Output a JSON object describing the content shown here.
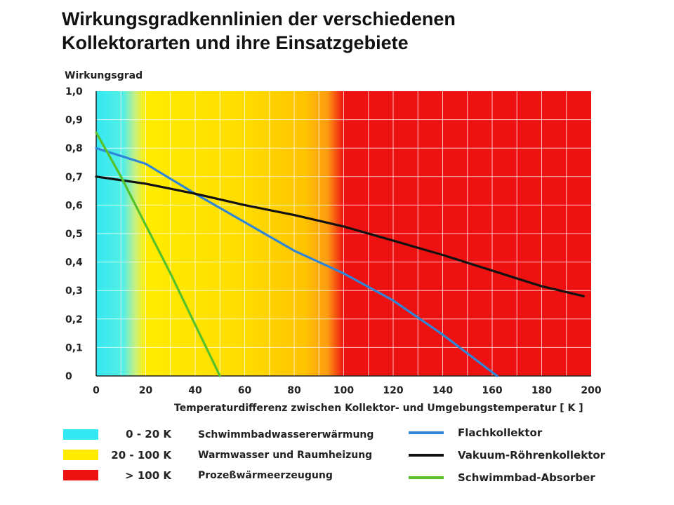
{
  "title": {
    "line1": "Wirkungsgradkennlinien der verschiedenen",
    "line2": "Kollektorarten und ihre Einsatzgebiete"
  },
  "chart_data": {
    "type": "line",
    "ylabel": "Wirkungsgrad",
    "xlabel": "Temperaturdifferenz  zwischen Kollektor- und Umgebungstemperatur [ K ]",
    "xlim": [
      0,
      200
    ],
    "ylim": [
      0,
      1.0
    ],
    "x_ticks": [
      "0",
      "20",
      "40",
      "60",
      "80",
      "100",
      "120",
      "140",
      "160",
      "180",
      "200"
    ],
    "x_tick_values": [
      0,
      20,
      40,
      60,
      80,
      100,
      120,
      140,
      160,
      180,
      200
    ],
    "y_ticks": [
      "0",
      "0,1",
      "0,2",
      "0,3",
      "0,4",
      "0,5",
      "0,6",
      "0,7",
      "0,8",
      "0,9",
      "1,0"
    ],
    "y_tick_values": [
      0,
      0.1,
      0.2,
      0.3,
      0.4,
      0.5,
      0.6,
      0.7,
      0.8,
      0.9,
      1.0
    ],
    "grid": true,
    "bands": [
      {
        "from": 0,
        "to": 20,
        "color": "#33e8f2",
        "label": "0 - 20 K",
        "description": "Schwimmbadwassererwärmung"
      },
      {
        "from": 20,
        "to": 100,
        "color": "#ffec00",
        "label": "20 - 100 K",
        "description": "Warmwasser und Raumheizung"
      },
      {
        "from": 100,
        "to": 200,
        "color": "#ee1111",
        "label": "> 100 K",
        "description": "Prozeßwärmeerzeugung"
      }
    ],
    "series": [
      {
        "name": "Flachkollektor",
        "color": "#2f86d8",
        "points": [
          [
            0,
            0.8
          ],
          [
            20,
            0.745
          ],
          [
            40,
            0.64
          ],
          [
            60,
            0.54
          ],
          [
            80,
            0.44
          ],
          [
            100,
            0.36
          ],
          [
            120,
            0.265
          ],
          [
            140,
            0.145
          ],
          [
            162,
            0.0
          ]
        ]
      },
      {
        "name": "Vakuum-Röhrenkollektor",
        "color": "#111111",
        "points": [
          [
            0,
            0.7
          ],
          [
            20,
            0.675
          ],
          [
            40,
            0.64
          ],
          [
            60,
            0.6
          ],
          [
            80,
            0.565
          ],
          [
            100,
            0.525
          ],
          [
            120,
            0.475
          ],
          [
            140,
            0.425
          ],
          [
            160,
            0.37
          ],
          [
            180,
            0.315
          ],
          [
            197,
            0.28
          ]
        ]
      },
      {
        "name": "Schwimmbad-Absorber",
        "color": "#55c22a",
        "points": [
          [
            0,
            0.855
          ],
          [
            10,
            0.7
          ],
          [
            20,
            0.53
          ],
          [
            30,
            0.36
          ],
          [
            40,
            0.18
          ],
          [
            50,
            0.0
          ]
        ]
      }
    ]
  }
}
